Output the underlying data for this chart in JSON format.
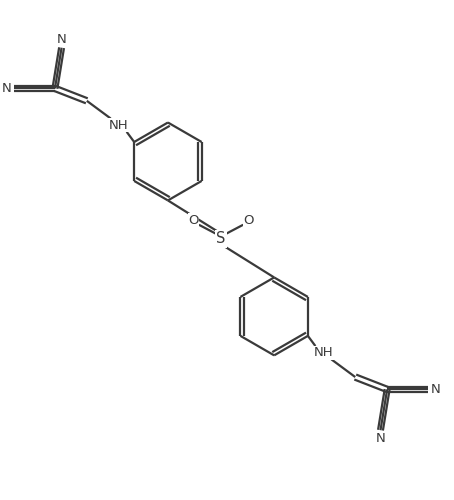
{
  "background_color": "#ffffff",
  "line_color": "#3a3a3a",
  "text_color": "#3a3a3a",
  "line_width": 1.6,
  "font_size": 9.5,
  "figsize": [
    4.54,
    5.0
  ],
  "dpi": 100,
  "xlim": [
    0,
    10
  ],
  "ylim": [
    0,
    11
  ]
}
